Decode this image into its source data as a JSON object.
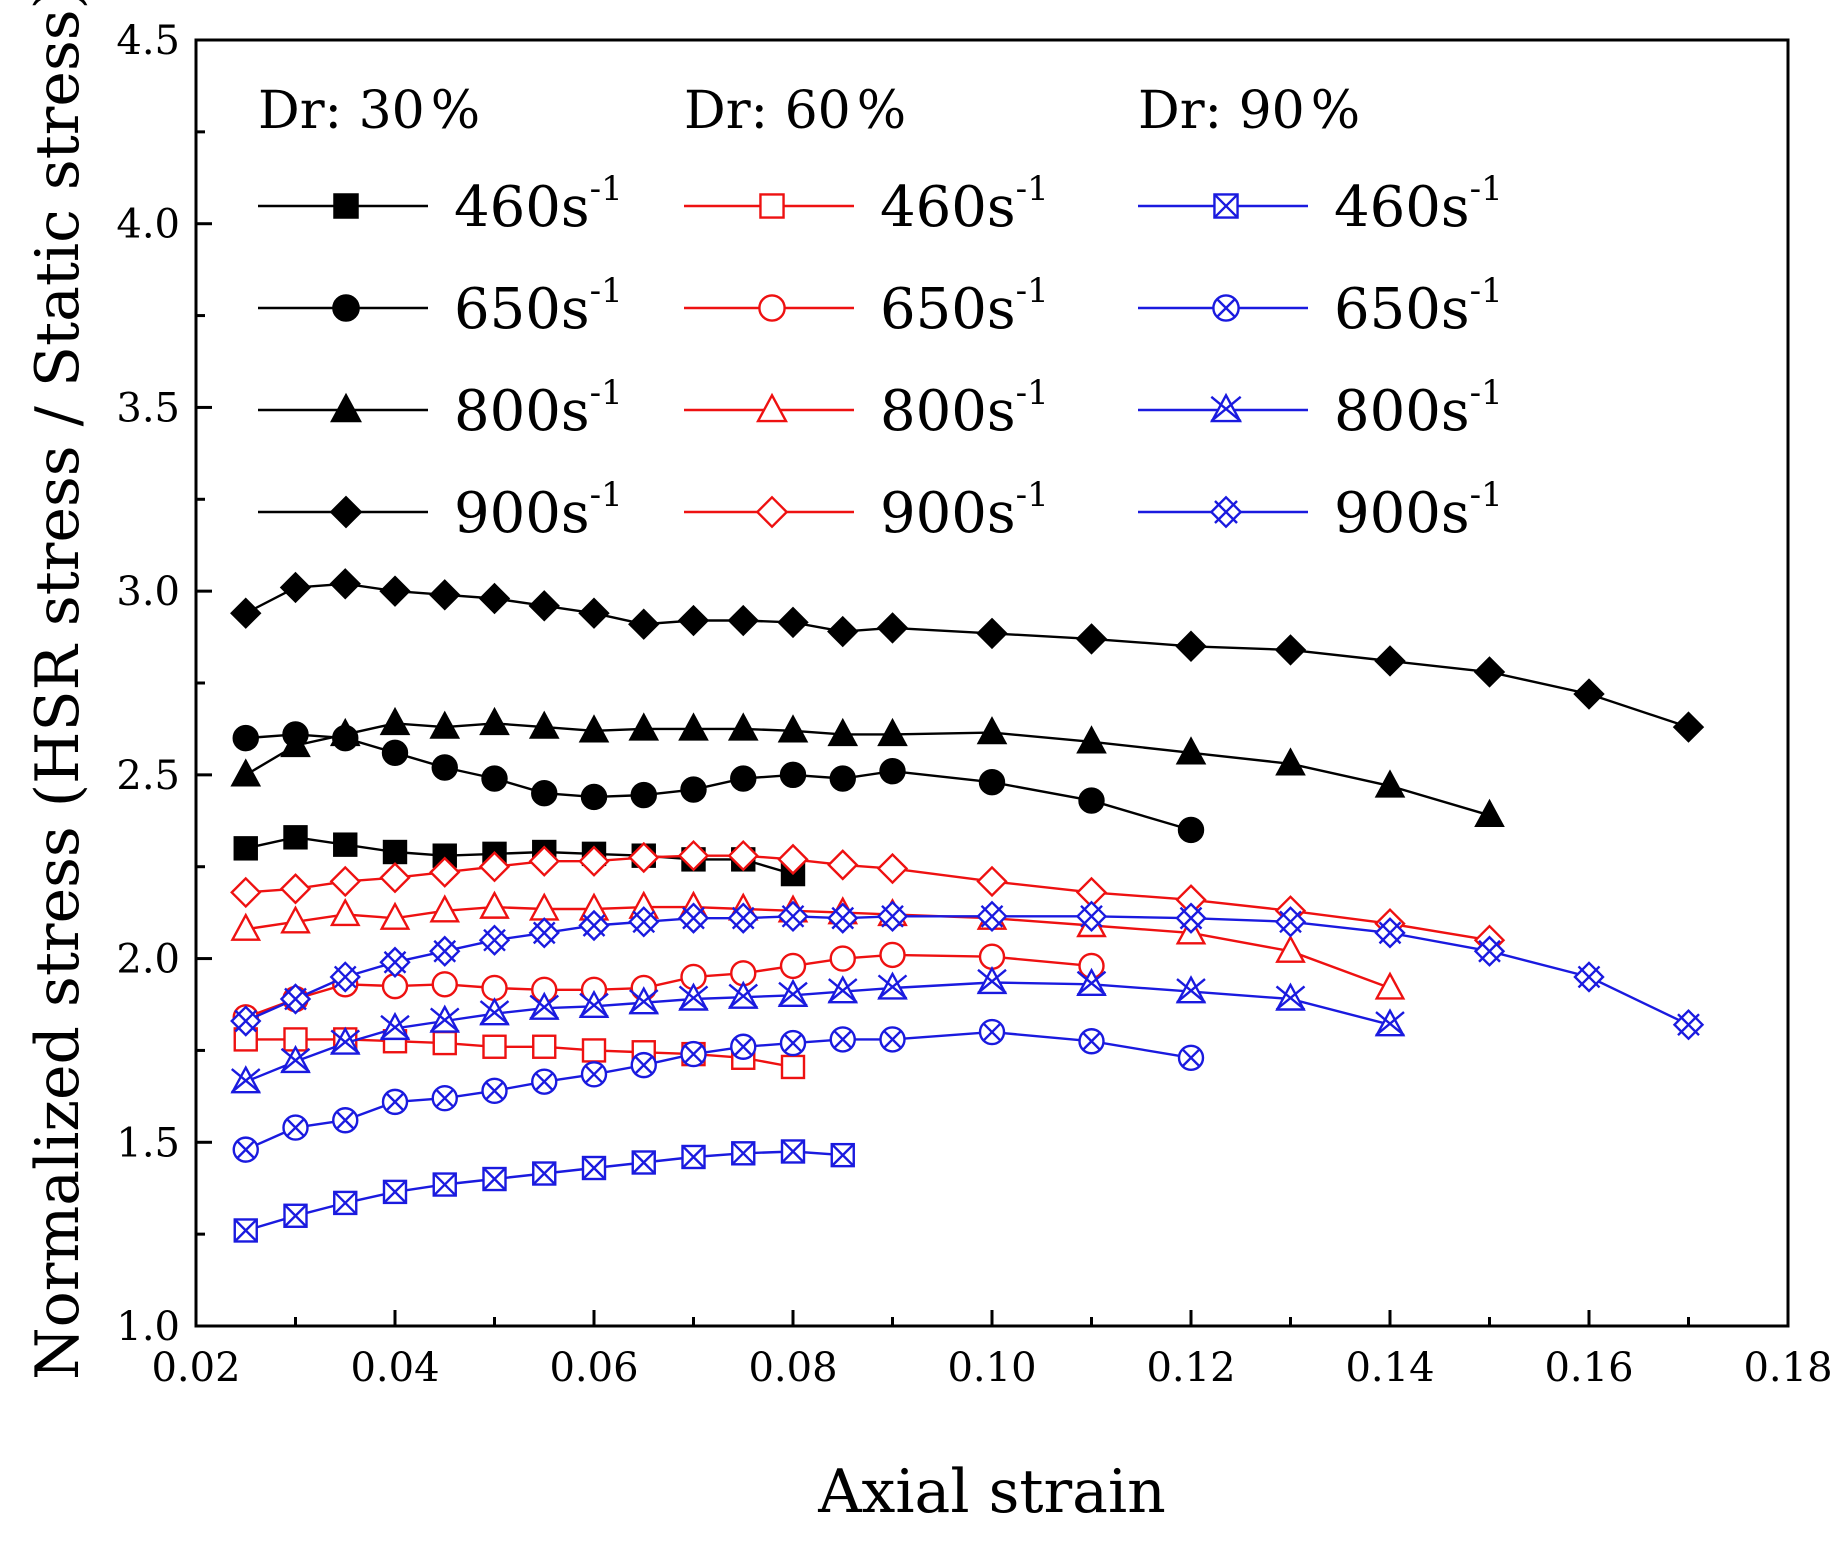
{
  "chart_data": {
    "type": "line",
    "title": "",
    "xlabel": "Axial strain",
    "ylabel": "Normalized stress (HSR stress / Static stress)",
    "xlim": [
      0.02,
      0.18
    ],
    "ylim": [
      1.0,
      4.5
    ],
    "xticks": [
      "0.02",
      "0.04",
      "0.06",
      "0.08",
      "0.10",
      "0.12",
      "0.14",
      "0.16",
      "0.18"
    ],
    "yticks": [
      "1.0",
      "1.5",
      "2.0",
      "2.5",
      "3.0",
      "3.5",
      "4.0",
      "4.5"
    ],
    "grid": false,
    "legend_position": "top",
    "groups": [
      {
        "name": "Dr: 30%",
        "label": "Dr: 30",
        "percent": "%",
        "color": "#000000"
      },
      {
        "name": "Dr: 60%",
        "label": "Dr: 60",
        "percent": "%",
        "color": "#ee1111"
      },
      {
        "name": "Dr: 90%",
        "label": "Dr: 90",
        "percent": "%",
        "color": "#1a1adf"
      }
    ],
    "series": [
      {
        "name": "Dr 30% 460s-1",
        "group": 0,
        "rate": "460",
        "unit": "s",
        "exp": "-1",
        "marker": "square-filled",
        "x": [
          0.025,
          0.03,
          0.035,
          0.04,
          0.045,
          0.05,
          0.055,
          0.06,
          0.065,
          0.07,
          0.075,
          0.08
        ],
        "y": [
          2.3,
          2.33,
          2.31,
          2.29,
          2.28,
          2.285,
          2.29,
          2.285,
          2.28,
          2.27,
          2.27,
          2.23
        ]
      },
      {
        "name": "Dr 30% 650s-1",
        "group": 0,
        "rate": "650",
        "unit": "s",
        "exp": "-1",
        "marker": "circle-filled",
        "x": [
          0.025,
          0.03,
          0.035,
          0.04,
          0.045,
          0.05,
          0.055,
          0.06,
          0.065,
          0.07,
          0.075,
          0.08,
          0.085,
          0.09,
          0.1,
          0.11,
          0.12
        ],
        "y": [
          2.6,
          2.61,
          2.6,
          2.56,
          2.52,
          2.49,
          2.45,
          2.44,
          2.445,
          2.46,
          2.49,
          2.5,
          2.49,
          2.51,
          2.48,
          2.43,
          2.35
        ]
      },
      {
        "name": "Dr 30% 800s-1",
        "group": 0,
        "rate": "800",
        "unit": "s",
        "exp": "-1",
        "marker": "triangle-filled",
        "x": [
          0.025,
          0.03,
          0.035,
          0.04,
          0.045,
          0.05,
          0.055,
          0.06,
          0.065,
          0.07,
          0.075,
          0.08,
          0.085,
          0.09,
          0.1,
          0.11,
          0.12,
          0.13,
          0.14,
          0.15
        ],
        "y": [
          2.5,
          2.58,
          2.61,
          2.64,
          2.63,
          2.64,
          2.63,
          2.62,
          2.625,
          2.625,
          2.625,
          2.62,
          2.61,
          2.61,
          2.615,
          2.59,
          2.56,
          2.53,
          2.47,
          2.39
        ]
      },
      {
        "name": "Dr 30% 900s-1",
        "group": 0,
        "rate": "900",
        "unit": "s",
        "exp": "-1",
        "marker": "diamond-filled",
        "x": [
          0.025,
          0.03,
          0.035,
          0.04,
          0.045,
          0.05,
          0.055,
          0.06,
          0.065,
          0.07,
          0.075,
          0.08,
          0.085,
          0.09,
          0.1,
          0.11,
          0.12,
          0.13,
          0.14,
          0.15,
          0.16,
          0.17
        ],
        "y": [
          2.94,
          3.01,
          3.02,
          3.0,
          2.99,
          2.98,
          2.96,
          2.94,
          2.91,
          2.92,
          2.92,
          2.915,
          2.89,
          2.9,
          2.885,
          2.87,
          2.85,
          2.84,
          2.81,
          2.78,
          2.72,
          2.63
        ]
      },
      {
        "name": "Dr 60% 460s-1",
        "group": 1,
        "rate": "460",
        "unit": "s",
        "exp": "-1",
        "marker": "square-open",
        "x": [
          0.025,
          0.03,
          0.035,
          0.04,
          0.045,
          0.05,
          0.055,
          0.06,
          0.065,
          0.07,
          0.075,
          0.08
        ],
        "y": [
          1.78,
          1.78,
          1.78,
          1.775,
          1.77,
          1.76,
          1.76,
          1.75,
          1.745,
          1.74,
          1.73,
          1.705
        ]
      },
      {
        "name": "Dr 60% 650s-1",
        "group": 1,
        "rate": "650",
        "unit": "s",
        "exp": "-1",
        "marker": "circle-open",
        "x": [
          0.025,
          0.03,
          0.035,
          0.04,
          0.045,
          0.05,
          0.055,
          0.06,
          0.065,
          0.07,
          0.075,
          0.08,
          0.085,
          0.09,
          0.1,
          0.11
        ],
        "y": [
          1.84,
          1.89,
          1.93,
          1.925,
          1.93,
          1.92,
          1.915,
          1.915,
          1.92,
          1.95,
          1.96,
          1.98,
          2.0,
          2.01,
          2.005,
          1.98
        ]
      },
      {
        "name": "Dr 60% 800s-1",
        "group": 1,
        "rate": "800",
        "unit": "s",
        "exp": "-1",
        "marker": "triangle-open",
        "x": [
          0.025,
          0.03,
          0.035,
          0.04,
          0.045,
          0.05,
          0.055,
          0.06,
          0.065,
          0.07,
          0.075,
          0.08,
          0.085,
          0.09,
          0.1,
          0.11,
          0.12,
          0.13,
          0.14
        ],
        "y": [
          2.08,
          2.1,
          2.12,
          2.11,
          2.13,
          2.14,
          2.135,
          2.135,
          2.14,
          2.14,
          2.135,
          2.13,
          2.125,
          2.12,
          2.11,
          2.09,
          2.07,
          2.02,
          1.92
        ]
      },
      {
        "name": "Dr 60% 900s-1",
        "group": 1,
        "rate": "900",
        "unit": "s",
        "exp": "-1",
        "marker": "diamond-open",
        "x": [
          0.025,
          0.03,
          0.035,
          0.04,
          0.045,
          0.05,
          0.055,
          0.06,
          0.065,
          0.07,
          0.075,
          0.08,
          0.085,
          0.09,
          0.1,
          0.11,
          0.12,
          0.13,
          0.14,
          0.15
        ],
        "y": [
          2.18,
          2.19,
          2.21,
          2.22,
          2.235,
          2.25,
          2.265,
          2.265,
          2.275,
          2.28,
          2.28,
          2.27,
          2.255,
          2.245,
          2.21,
          2.18,
          2.16,
          2.13,
          2.095,
          2.05
        ]
      },
      {
        "name": "Dr 90% 460s-1",
        "group": 2,
        "rate": "460",
        "unit": "s",
        "exp": "-1",
        "marker": "square-x",
        "x": [
          0.025,
          0.03,
          0.035,
          0.04,
          0.045,
          0.05,
          0.055,
          0.06,
          0.065,
          0.07,
          0.075,
          0.08,
          0.085
        ],
        "y": [
          1.26,
          1.3,
          1.335,
          1.365,
          1.385,
          1.4,
          1.415,
          1.43,
          1.445,
          1.46,
          1.47,
          1.475,
          1.465
        ]
      },
      {
        "name": "Dr 90% 650s-1",
        "group": 2,
        "rate": "650",
        "unit": "s",
        "exp": "-1",
        "marker": "circle-x",
        "x": [
          0.025,
          0.03,
          0.035,
          0.04,
          0.045,
          0.05,
          0.055,
          0.06,
          0.065,
          0.07,
          0.075,
          0.08,
          0.085,
          0.09,
          0.1,
          0.11,
          0.12
        ],
        "y": [
          1.48,
          1.54,
          1.56,
          1.61,
          1.62,
          1.64,
          1.665,
          1.685,
          1.71,
          1.74,
          1.76,
          1.77,
          1.78,
          1.78,
          1.8,
          1.775,
          1.73
        ]
      },
      {
        "name": "Dr 90% 800s-1",
        "group": 2,
        "rate": "800",
        "unit": "s",
        "exp": "-1",
        "marker": "triangle-x",
        "x": [
          0.025,
          0.03,
          0.035,
          0.04,
          0.045,
          0.05,
          0.055,
          0.06,
          0.065,
          0.07,
          0.075,
          0.08,
          0.085,
          0.09,
          0.1,
          0.11,
          0.12,
          0.13,
          0.14
        ],
        "y": [
          1.665,
          1.72,
          1.77,
          1.81,
          1.83,
          1.85,
          1.865,
          1.87,
          1.88,
          1.89,
          1.895,
          1.9,
          1.91,
          1.92,
          1.935,
          1.93,
          1.91,
          1.89,
          1.82
        ]
      },
      {
        "name": "Dr 90% 900s-1",
        "group": 2,
        "rate": "900",
        "unit": "s",
        "exp": "-1",
        "marker": "diamond-x",
        "x": [
          0.025,
          0.03,
          0.035,
          0.04,
          0.045,
          0.05,
          0.055,
          0.06,
          0.065,
          0.07,
          0.075,
          0.08,
          0.085,
          0.09,
          0.1,
          0.11,
          0.12,
          0.13,
          0.14,
          0.15,
          0.16,
          0.17
        ],
        "y": [
          1.83,
          1.89,
          1.95,
          1.99,
          2.02,
          2.05,
          2.07,
          2.09,
          2.1,
          2.11,
          2.11,
          2.115,
          2.11,
          2.115,
          2.115,
          2.115,
          2.11,
          2.1,
          2.07,
          2.02,
          1.95,
          1.82
        ]
      }
    ]
  }
}
